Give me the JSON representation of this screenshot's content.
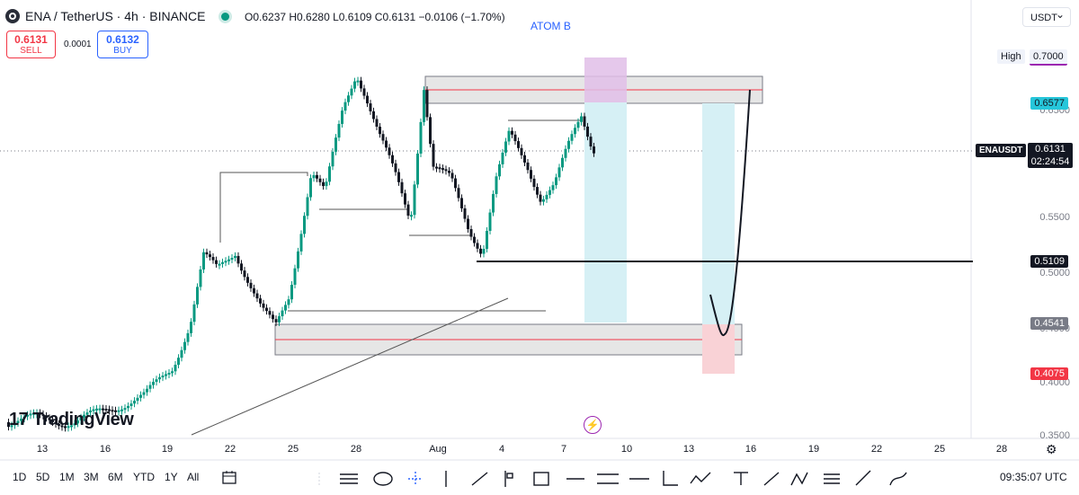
{
  "header": {
    "symbol_title": "ENA / TetherUS · 4h · BINANCE",
    "ohlc": "O0.6237  H0.6280  L0.6109  C0.6131  −0.0106 (−1.70%)",
    "sell": {
      "price": "0.6131",
      "label": "SELL"
    },
    "buy": {
      "price": "0.6132",
      "label": "BUY"
    },
    "spread": "0.0001",
    "annotation": "ATOM B",
    "currency": "USDT"
  },
  "price_axis": {
    "high_label": "High",
    "high_value": "0.7000",
    "tags": {
      "target": "0.6577",
      "symbol": "ENAUSDT",
      "last_price": "0.6131",
      "countdown": "02:24:54",
      "level": "0.5109",
      "entry": "0.4541",
      "stop": "0.4075"
    },
    "ticks": [
      "0.6500",
      "0.5500",
      "0.5000",
      "0.4500",
      "0.4000",
      "0.3500"
    ]
  },
  "time_axis": [
    "13",
    "16",
    "19",
    "22",
    "25",
    "28",
    "Aug",
    "4",
    "7",
    "10",
    "13",
    "16",
    "19",
    "22",
    "25",
    "28"
  ],
  "bottom_bar": {
    "timeframes": [
      "1D",
      "5D",
      "1M",
      "3M",
      "6M",
      "YTD",
      "1Y",
      "All"
    ],
    "clock": "09:35:07 UTC"
  },
  "branding": "TradingView",
  "colors": {
    "up": "#089981",
    "down": "#131722",
    "sell": "#f23645",
    "buy": "#2962ff",
    "target_zone": "#d6f0f5",
    "stop_zone": "#f9d2d6",
    "accent": "#9c27b0"
  },
  "chart_data": {
    "type": "candlestick",
    "interval": "4h",
    "ylim": [
      0.35,
      0.7
    ],
    "last_close": 0.6131,
    "levels": [
      0.6577,
      0.5109,
      0.4541,
      0.4075
    ]
  }
}
